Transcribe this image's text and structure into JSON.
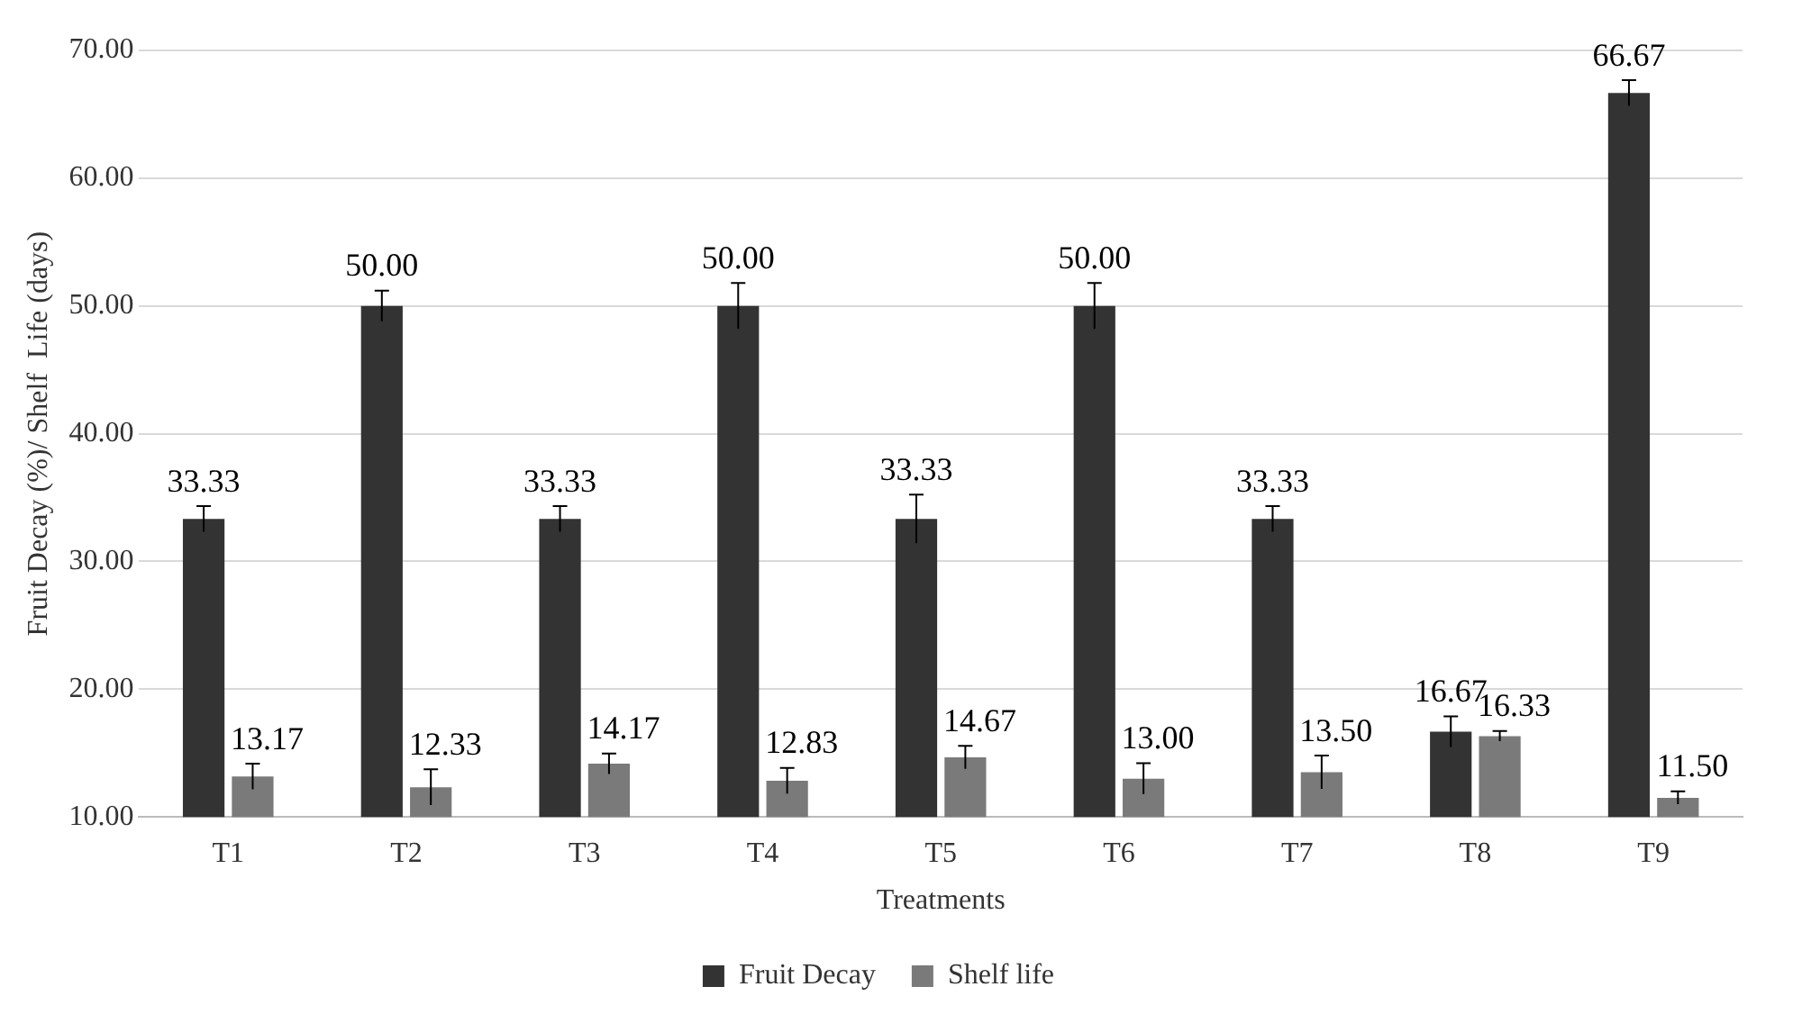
{
  "chart_data": {
    "type": "bar",
    "xlabel": "Treatments",
    "ylabel": "Fruit Decay (%)/ Shelf  Life (days)",
    "categories": [
      "T1",
      "T2",
      "T3",
      "T4",
      "T5",
      "T6",
      "T7",
      "T8",
      "T9"
    ],
    "series": [
      {
        "name": "Fruit Decay",
        "color": "#333333",
        "values": [
          33.33,
          50.0,
          33.33,
          50.0,
          33.33,
          50.0,
          33.33,
          16.67,
          66.67
        ],
        "errors": [
          1.0,
          1.2,
          1.0,
          1.8,
          1.9,
          1.8,
          1.0,
          1.2,
          1.0
        ],
        "value_labels": [
          "33.33",
          "50.00",
          "33.33",
          "50.00",
          "33.33",
          "50.00",
          "33.33",
          "16.67",
          "66.67"
        ]
      },
      {
        "name": "Shelf life",
        "color": "#7a7a7a",
        "values": [
          13.17,
          12.33,
          14.17,
          12.83,
          14.67,
          13.0,
          13.5,
          16.33,
          11.5
        ],
        "errors": [
          1.0,
          1.4,
          0.8,
          1.0,
          0.9,
          1.2,
          1.3,
          0.4,
          0.5
        ],
        "value_labels": [
          "13.17",
          "12.33",
          "14.17",
          "12.83",
          "14.67",
          "13.00",
          "13.50",
          "16.33",
          "11.50"
        ]
      }
    ],
    "ylim": [
      10,
      70
    ],
    "yticks": [
      {
        "value": 10,
        "label": "10.00"
      },
      {
        "value": 20,
        "label": "20.00"
      },
      {
        "value": 30,
        "label": "30.00"
      },
      {
        "value": 40,
        "label": "40.00"
      },
      {
        "value": 50,
        "label": "50.00"
      },
      {
        "value": 60,
        "label": "60.00"
      },
      {
        "value": 70,
        "label": "70.00"
      }
    ],
    "grid": "y",
    "legend": "bottom"
  }
}
